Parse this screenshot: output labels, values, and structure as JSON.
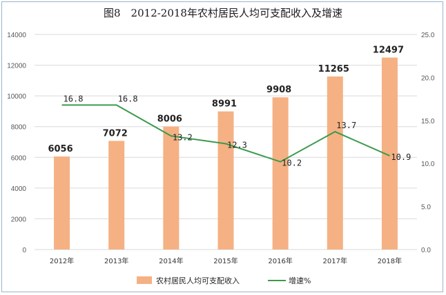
{
  "chart_data": {
    "type": "bar+line",
    "title": "图8　2012-2018年农村居民人均可支配收入及增速",
    "categories": [
      "2012年",
      "2013年",
      "2014年",
      "2015年",
      "2016年",
      "2017年",
      "2018年"
    ],
    "series": [
      {
        "name": "农村居民人均可支配收入",
        "type": "bar",
        "axis": "left",
        "values": [
          6056,
          7072,
          8006,
          8991,
          9908,
          11265,
          12497
        ],
        "color": "#f5b183"
      },
      {
        "name": "增速%",
        "type": "line",
        "axis": "right",
        "values": [
          16.8,
          16.8,
          13.2,
          12.3,
          10.2,
          13.7,
          10.9
        ],
        "color": "#3b9a4c"
      }
    ],
    "ylim_left": [
      0,
      14000
    ],
    "yticks_left": [
      "0",
      "2000",
      "4000",
      "6000",
      "8000",
      "10000",
      "12000",
      "14000"
    ],
    "ylim_right": [
      0,
      25
    ],
    "yticks_right": [
      "0.0",
      "5.0",
      "10.0",
      "15.0",
      "20.0",
      "25.0"
    ],
    "grid": true,
    "legend_position": "bottom"
  }
}
